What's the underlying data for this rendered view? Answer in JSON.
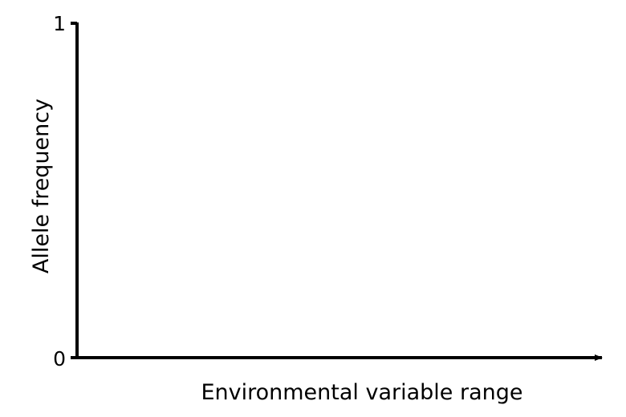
{
  "chart_data": {
    "type": "line",
    "title": "",
    "xlabel": "Environmental variable range",
    "ylabel": "Allele frequency",
    "ylim": [
      0,
      1
    ],
    "yticks": [
      "0",
      "1"
    ],
    "grid": false,
    "series": []
  }
}
